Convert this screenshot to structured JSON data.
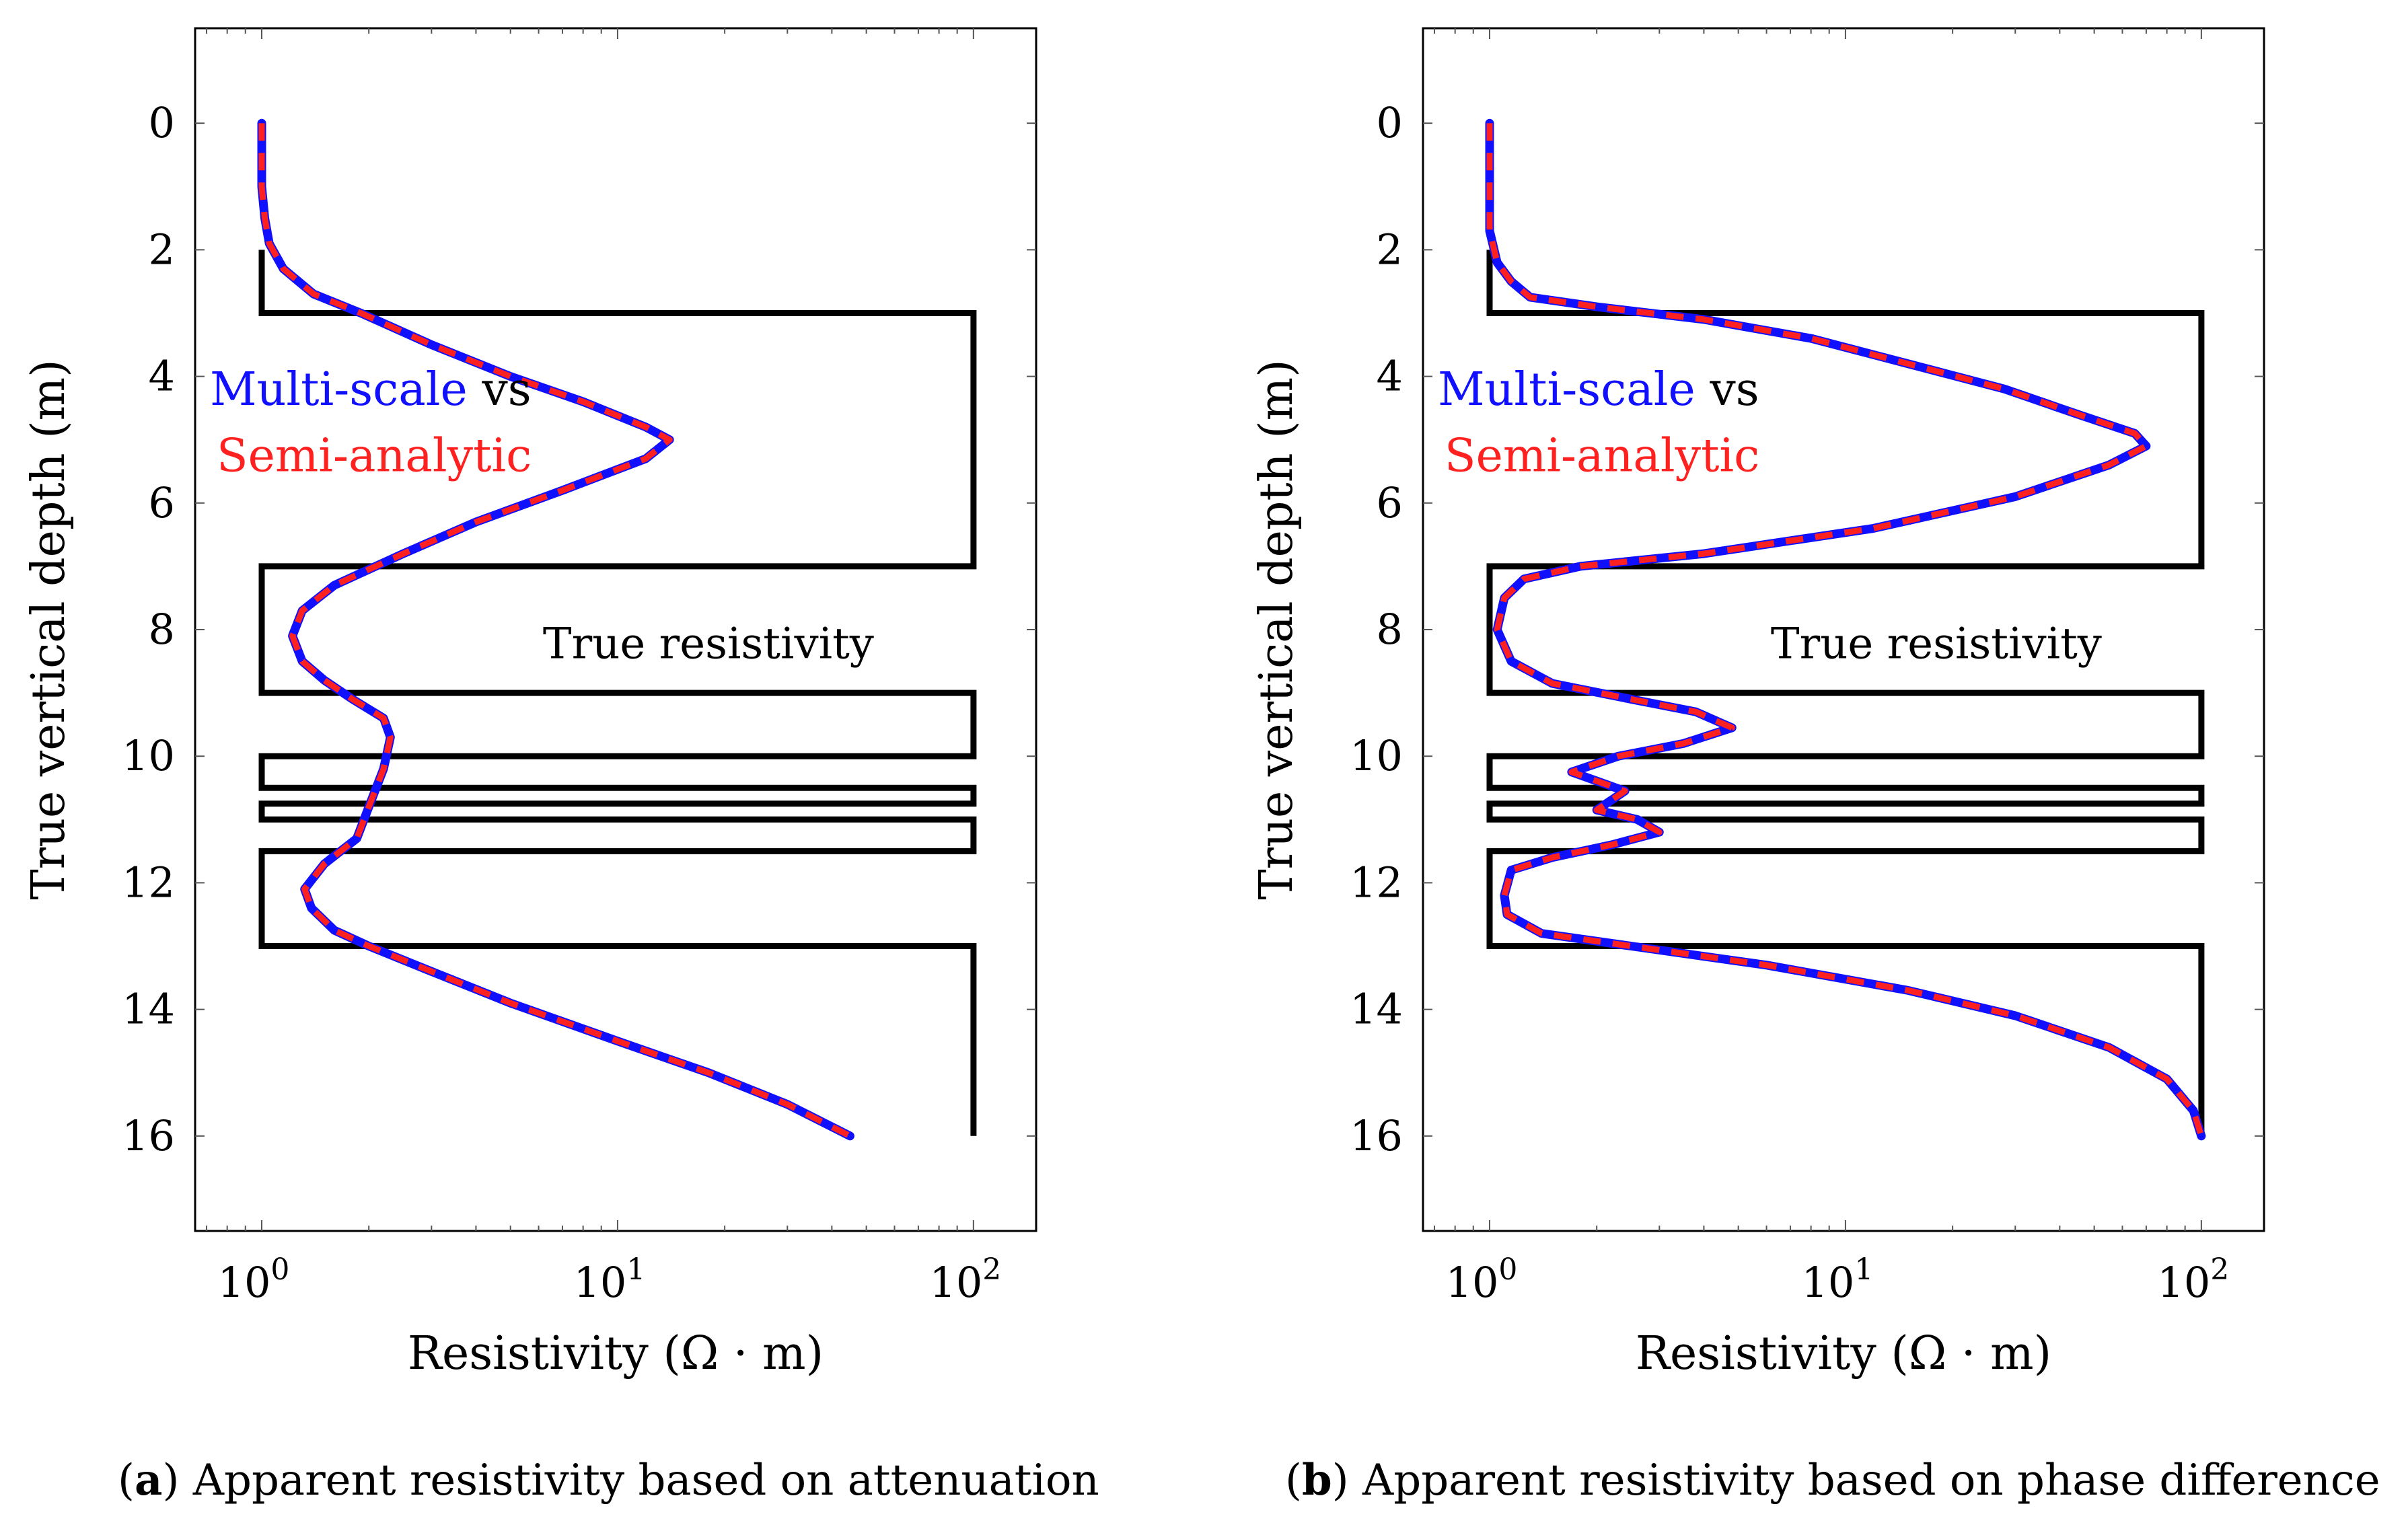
{
  "chart_data": [
    {
      "type": "line",
      "panel": "a",
      "title": "",
      "xlabel": "Resistivity (Ω · m)",
      "ylabel": "True vertical depth (m)",
      "xscale": "log",
      "xlim": [
        0.65,
        150
      ],
      "ylim": [
        17.5,
        -1.5
      ],
      "xticks": [
        {
          "value": 1,
          "base": "10",
          "exp": "0"
        },
        {
          "value": 10,
          "base": "10",
          "exp": "1"
        },
        {
          "value": 100,
          "base": "10",
          "exp": "2"
        }
      ],
      "yticks": [
        0,
        2,
        4,
        6,
        8,
        10,
        12,
        14,
        16
      ],
      "caption": {
        "tag": "a",
        "text": "Apparent resistivity based on attenuation"
      },
      "annotation": {
        "multi": "Multi-scale",
        "vs": " vs",
        "semi": "Semi-analytic",
        "true_label": "True resistivity"
      },
      "legend_position": "upper-left (inline text)",
      "series": [
        {
          "name": "True resistivity",
          "color": "#000000",
          "points": [
            [
              1,
              2
            ],
            [
              1,
              3
            ],
            [
              100,
              3
            ],
            [
              100,
              7
            ],
            [
              1,
              7
            ],
            [
              1,
              9
            ],
            [
              100,
              9
            ],
            [
              100,
              10
            ],
            [
              1,
              10
            ],
            [
              1,
              10.5
            ],
            [
              100,
              10.5
            ],
            [
              100,
              10.75
            ],
            [
              1,
              10.75
            ],
            [
              1,
              11
            ],
            [
              100,
              11
            ],
            [
              100,
              11.5
            ],
            [
              1,
              11.5
            ],
            [
              1,
              13
            ],
            [
              100,
              13
            ],
            [
              100,
              16
            ]
          ]
        },
        {
          "name": "Multi-scale",
          "color": "#1010ff",
          "points": [
            [
              1,
              0
            ],
            [
              1,
              1
            ],
            [
              1.02,
              1.5
            ],
            [
              1.05,
              1.9
            ],
            [
              1.15,
              2.3
            ],
            [
              1.4,
              2.7
            ],
            [
              1.9,
              3.0
            ],
            [
              3,
              3.5
            ],
            [
              5,
              4.0
            ],
            [
              8,
              4.4
            ],
            [
              12,
              4.8
            ],
            [
              14,
              5.0
            ],
            [
              12,
              5.3
            ],
            [
              7,
              5.8
            ],
            [
              4,
              6.3
            ],
            [
              2.5,
              6.8
            ],
            [
              1.6,
              7.3
            ],
            [
              1.3,
              7.7
            ],
            [
              1.22,
              8.1
            ],
            [
              1.3,
              8.5
            ],
            [
              1.5,
              8.8
            ],
            [
              1.8,
              9.1
            ],
            [
              2.2,
              9.4
            ],
            [
              2.3,
              9.7
            ],
            [
              2.2,
              10.2
            ],
            [
              2.0,
              10.8
            ],
            [
              1.85,
              11.3
            ],
            [
              1.5,
              11.7
            ],
            [
              1.32,
              12.1
            ],
            [
              1.38,
              12.4
            ],
            [
              1.6,
              12.75
            ],
            [
              2.0,
              13.0
            ],
            [
              3,
              13.4
            ],
            [
              5,
              13.9
            ],
            [
              10,
              14.5
            ],
            [
              18,
              15.0
            ],
            [
              30,
              15.5
            ],
            [
              45,
              16.0
            ]
          ]
        },
        {
          "name": "Semi-analytic",
          "color": "#ff2020",
          "points": [
            [
              1,
              0
            ],
            [
              1,
              1
            ],
            [
              1.02,
              1.5
            ],
            [
              1.05,
              1.9
            ],
            [
              1.15,
              2.3
            ],
            [
              1.4,
              2.7
            ],
            [
              1.9,
              3.0
            ],
            [
              3,
              3.5
            ],
            [
              5,
              4.0
            ],
            [
              8,
              4.4
            ],
            [
              12,
              4.8
            ],
            [
              14,
              5.0
            ],
            [
              12,
              5.3
            ],
            [
              7,
              5.8
            ],
            [
              4,
              6.3
            ],
            [
              2.5,
              6.8
            ],
            [
              1.6,
              7.3
            ],
            [
              1.3,
              7.7
            ],
            [
              1.22,
              8.1
            ],
            [
              1.3,
              8.5
            ],
            [
              1.5,
              8.8
            ],
            [
              1.8,
              9.1
            ],
            [
              2.2,
              9.4
            ],
            [
              2.3,
              9.7
            ],
            [
              2.2,
              10.2
            ],
            [
              2.0,
              10.8
            ],
            [
              1.85,
              11.3
            ],
            [
              1.5,
              11.7
            ],
            [
              1.32,
              12.1
            ],
            [
              1.38,
              12.4
            ],
            [
              1.6,
              12.75
            ],
            [
              2.0,
              13.0
            ],
            [
              3,
              13.4
            ],
            [
              5,
              13.9
            ],
            [
              10,
              14.5
            ],
            [
              18,
              15.0
            ],
            [
              30,
              15.5
            ],
            [
              45,
              16.0
            ]
          ]
        }
      ]
    },
    {
      "type": "line",
      "panel": "b",
      "title": "",
      "xlabel": "Resistivity (Ω · m)",
      "ylabel": "True vertical depth (m)",
      "xscale": "log",
      "xlim": [
        0.65,
        150
      ],
      "ylim": [
        17.5,
        -1.5
      ],
      "xticks": [
        {
          "value": 1,
          "base": "10",
          "exp": "0"
        },
        {
          "value": 10,
          "base": "10",
          "exp": "1"
        },
        {
          "value": 100,
          "base": "10",
          "exp": "2"
        }
      ],
      "yticks": [
        0,
        2,
        4,
        6,
        8,
        10,
        12,
        14,
        16
      ],
      "caption": {
        "tag": "b",
        "text": "Apparent resistivity based on phase difference"
      },
      "annotation": {
        "multi": "Multi-scale",
        "vs": " vs",
        "semi": "Semi-analytic",
        "true_label": "True resistivity"
      },
      "legend_position": "upper-left (inline text)",
      "series": [
        {
          "name": "True resistivity",
          "color": "#000000",
          "points": [
            [
              1,
              2
            ],
            [
              1,
              3
            ],
            [
              100,
              3
            ],
            [
              100,
              7
            ],
            [
              1,
              7
            ],
            [
              1,
              9
            ],
            [
              100,
              9
            ],
            [
              100,
              10
            ],
            [
              1,
              10
            ],
            [
              1,
              10.5
            ],
            [
              100,
              10.5
            ],
            [
              100,
              10.75
            ],
            [
              1,
              10.75
            ],
            [
              1,
              11
            ],
            [
              100,
              11
            ],
            [
              100,
              11.5
            ],
            [
              1,
              11.5
            ],
            [
              1,
              13
            ],
            [
              100,
              13
            ],
            [
              100,
              16
            ]
          ]
        },
        {
          "name": "Multi-scale",
          "color": "#1010ff",
          "points": [
            [
              1,
              0
            ],
            [
              1,
              1
            ],
            [
              1.0,
              1.7
            ],
            [
              1.05,
              2.2
            ],
            [
              1.15,
              2.5
            ],
            [
              1.3,
              2.75
            ],
            [
              2,
              2.9
            ],
            [
              4,
              3.1
            ],
            [
              8,
              3.4
            ],
            [
              15,
              3.8
            ],
            [
              28,
              4.2
            ],
            [
              45,
              4.6
            ],
            [
              65,
              4.9
            ],
            [
              70,
              5.1
            ],
            [
              55,
              5.4
            ],
            [
              30,
              5.9
            ],
            [
              12,
              6.4
            ],
            [
              4,
              6.8
            ],
            [
              1.8,
              7.0
            ],
            [
              1.25,
              7.2
            ],
            [
              1.1,
              7.5
            ],
            [
              1.05,
              8.0
            ],
            [
              1.15,
              8.5
            ],
            [
              1.5,
              8.85
            ],
            [
              2.5,
              9.1
            ],
            [
              3.8,
              9.3
            ],
            [
              4.8,
              9.55
            ],
            [
              3.5,
              9.8
            ],
            [
              2.3,
              10.0
            ],
            [
              1.7,
              10.25
            ],
            [
              2.4,
              10.55
            ],
            [
              2.0,
              10.85
            ],
            [
              2.6,
              11.0
            ],
            [
              3.0,
              11.2
            ],
            [
              2.2,
              11.4
            ],
            [
              1.5,
              11.6
            ],
            [
              1.15,
              11.8
            ],
            [
              1.1,
              12.2
            ],
            [
              1.12,
              12.5
            ],
            [
              1.4,
              12.8
            ],
            [
              2.5,
              13.0
            ],
            [
              6,
              13.3
            ],
            [
              15,
              13.7
            ],
            [
              30,
              14.1
            ],
            [
              55,
              14.6
            ],
            [
              80,
              15.1
            ],
            [
              95,
              15.6
            ],
            [
              100,
              16.0
            ]
          ]
        },
        {
          "name": "Semi-analytic",
          "color": "#ff2020",
          "points": [
            [
              1,
              0
            ],
            [
              1,
              1
            ],
            [
              1.0,
              1.7
            ],
            [
              1.05,
              2.2
            ],
            [
              1.15,
              2.5
            ],
            [
              1.3,
              2.75
            ],
            [
              2,
              2.9
            ],
            [
              4,
              3.1
            ],
            [
              8,
              3.4
            ],
            [
              15,
              3.8
            ],
            [
              28,
              4.2
            ],
            [
              45,
              4.6
            ],
            [
              65,
              4.9
            ],
            [
              70,
              5.1
            ],
            [
              55,
              5.4
            ],
            [
              30,
              5.9
            ],
            [
              12,
              6.4
            ],
            [
              4,
              6.8
            ],
            [
              1.8,
              7.0
            ],
            [
              1.25,
              7.2
            ],
            [
              1.1,
              7.5
            ],
            [
              1.05,
              8.0
            ],
            [
              1.15,
              8.5
            ],
            [
              1.5,
              8.85
            ],
            [
              2.5,
              9.1
            ],
            [
              3.8,
              9.3
            ],
            [
              4.8,
              9.55
            ],
            [
              3.5,
              9.8
            ],
            [
              2.3,
              10.0
            ],
            [
              1.7,
              10.25
            ],
            [
              2.4,
              10.55
            ],
            [
              2.0,
              10.85
            ],
            [
              2.6,
              11.0
            ],
            [
              3.0,
              11.2
            ],
            [
              2.2,
              11.4
            ],
            [
              1.5,
              11.6
            ],
            [
              1.15,
              11.8
            ],
            [
              1.1,
              12.2
            ],
            [
              1.12,
              12.5
            ],
            [
              1.4,
              12.8
            ],
            [
              2.5,
              13.0
            ],
            [
              6,
              13.3
            ],
            [
              15,
              13.7
            ],
            [
              30,
              14.1
            ],
            [
              55,
              14.6
            ],
            [
              80,
              15.1
            ],
            [
              95,
              15.6
            ],
            [
              100,
              16.0
            ]
          ]
        }
      ]
    }
  ],
  "colors": {
    "multi_scale": "#1010ff",
    "semi_analytic": "#ff2020",
    "true_resistivity": "#000000"
  }
}
